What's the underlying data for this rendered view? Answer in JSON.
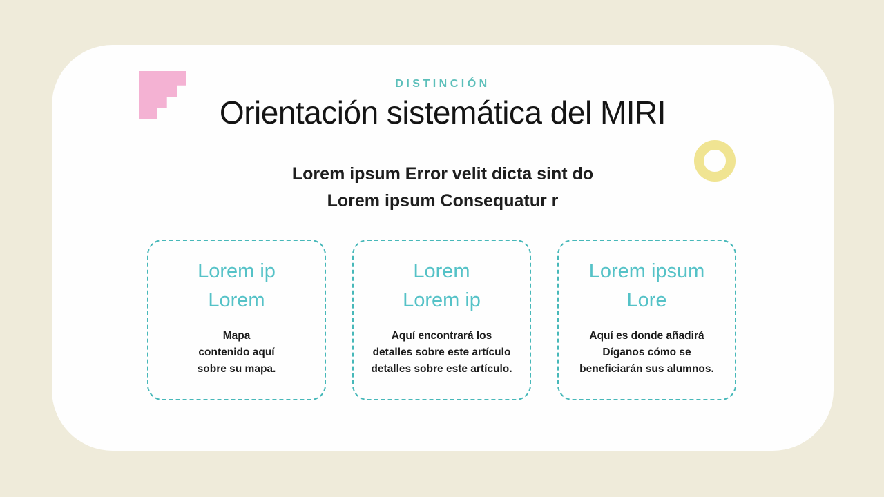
{
  "slide": {
    "kicker": "DISTINCIÓN",
    "title": "Orientación sistemática del MIRI",
    "subtitle": {
      "line1": "Lorem ipsum Error velit dicta sint do",
      "line2": "Lorem ipsum Consequatur r"
    },
    "cards": [
      {
        "heading": "Lorem ip\nLorem",
        "body": "Mapa\ncontenido aquí\nsobre su mapa."
      },
      {
        "heading": "Lorem\nLorem ip",
        "body": "Aquí encontrará los\ndetalles sobre este artículo\ndetalles sobre este artículo."
      },
      {
        "heading": "Lorem ipsum\nLore",
        "body": "Aquí es donde añadirá\nDíganos cómo se\nbeneficiarán sus alumnos."
      }
    ],
    "decorations": [
      {
        "name": "pink-stairs",
        "color": "#f4b2d3"
      },
      {
        "name": "yellow-ring",
        "color": "#f0e492"
      }
    ],
    "colors": {
      "background": "#efebda",
      "panel": "#fefefe",
      "kicker_teal": "#5cbfba",
      "heading_teal": "#55c2c7",
      "border_teal": "#47b8b9",
      "title_text": "#141414",
      "body_text": "#1c1c1c"
    }
  }
}
